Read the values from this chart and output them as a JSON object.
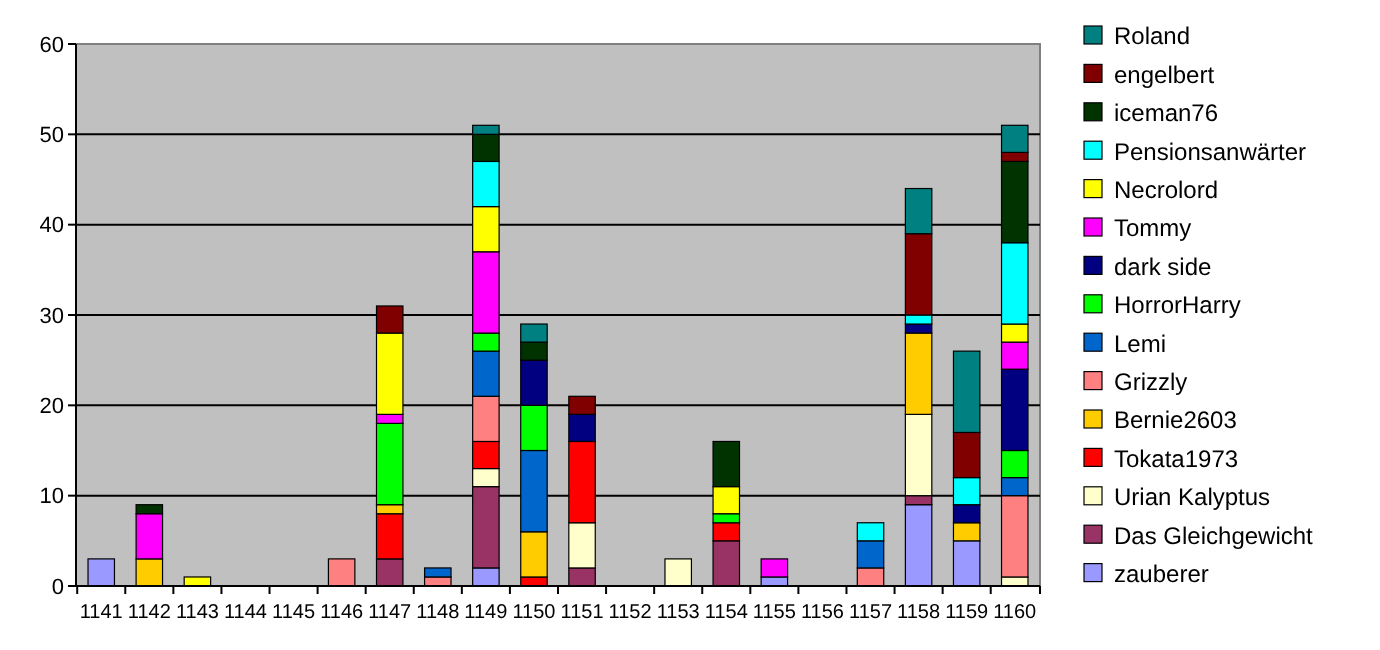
{
  "chart_data": {
    "type": "bar",
    "stacked": true,
    "categories": [
      "1141",
      "1142",
      "1143",
      "1144",
      "1145",
      "1146",
      "1147",
      "1148",
      "1149",
      "1150",
      "1151",
      "1152",
      "1153",
      "1154",
      "1155",
      "1156",
      "1157",
      "1158",
      "1159",
      "1160"
    ],
    "series": [
      {
        "name": "zauberer",
        "color": "#9999ff",
        "values": [
          3,
          null,
          null,
          null,
          null,
          null,
          null,
          null,
          2,
          null,
          null,
          null,
          null,
          null,
          1,
          null,
          null,
          9,
          5,
          null
        ]
      },
      {
        "name": "Das Gleichgewicht",
        "color": "#993366",
        "values": [
          null,
          null,
          null,
          null,
          null,
          null,
          3,
          null,
          9,
          null,
          2,
          null,
          null,
          5,
          null,
          null,
          null,
          1,
          null,
          null
        ]
      },
      {
        "name": "Urian Kalyptus",
        "color": "#ffffcc",
        "values": [
          null,
          null,
          null,
          null,
          null,
          null,
          null,
          null,
          2,
          null,
          5,
          null,
          3,
          null,
          null,
          null,
          null,
          9,
          null,
          1
        ]
      },
      {
        "name": "Tokata1973",
        "color": "#ff0000",
        "values": [
          null,
          null,
          null,
          null,
          null,
          null,
          5,
          null,
          3,
          1,
          9,
          null,
          null,
          2,
          null,
          null,
          null,
          null,
          null,
          null
        ]
      },
      {
        "name": "Bernie2603",
        "color": "#ffcc00",
        "values": [
          null,
          3,
          null,
          null,
          null,
          null,
          1,
          null,
          null,
          5,
          null,
          null,
          null,
          null,
          null,
          null,
          null,
          9,
          2,
          null
        ]
      },
      {
        "name": "Grizzly",
        "color": "#ff8080",
        "values": [
          null,
          null,
          null,
          null,
          null,
          3,
          null,
          1,
          5,
          null,
          null,
          null,
          null,
          null,
          null,
          null,
          2,
          null,
          null,
          9
        ]
      },
      {
        "name": "Lemi",
        "color": "#0066cc",
        "values": [
          null,
          null,
          null,
          null,
          null,
          null,
          null,
          1,
          5,
          9,
          null,
          null,
          null,
          null,
          null,
          null,
          3,
          null,
          null,
          2
        ]
      },
      {
        "name": "HorrorHarry",
        "color": "#00ff00",
        "values": [
          null,
          null,
          null,
          null,
          null,
          null,
          9,
          null,
          2,
          5,
          null,
          null,
          null,
          1,
          null,
          null,
          null,
          null,
          null,
          3
        ]
      },
      {
        "name": "dark side",
        "color": "#000080",
        "values": [
          null,
          null,
          null,
          null,
          null,
          null,
          null,
          null,
          null,
          5,
          3,
          null,
          null,
          null,
          null,
          null,
          null,
          1,
          2,
          9
        ]
      },
      {
        "name": "Tommy",
        "color": "#ff00ff",
        "values": [
          null,
          5,
          null,
          null,
          null,
          null,
          1,
          null,
          9,
          null,
          null,
          null,
          null,
          null,
          2,
          null,
          null,
          null,
          null,
          3
        ]
      },
      {
        "name": "Necrolord",
        "color": "#ffff00",
        "values": [
          null,
          null,
          1,
          null,
          null,
          null,
          9,
          null,
          5,
          null,
          null,
          null,
          null,
          3,
          null,
          null,
          null,
          null,
          null,
          2
        ]
      },
      {
        "name": "Pensionsanwärter",
        "color": "#00ffff",
        "values": [
          null,
          null,
          null,
          null,
          null,
          null,
          null,
          null,
          5,
          null,
          null,
          null,
          null,
          null,
          null,
          null,
          2,
          1,
          3,
          9
        ]
      },
      {
        "name": "iceman76",
        "color": "#003300",
        "values": [
          null,
          1,
          null,
          null,
          null,
          null,
          null,
          null,
          3,
          2,
          null,
          null,
          null,
          5,
          null,
          null,
          null,
          null,
          null,
          9
        ]
      },
      {
        "name": "engelbert",
        "color": "#800000",
        "values": [
          null,
          null,
          null,
          null,
          null,
          null,
          3,
          null,
          null,
          null,
          2,
          null,
          null,
          null,
          null,
          null,
          null,
          9,
          5,
          1
        ]
      },
      {
        "name": "Roland",
        "color": "#008080",
        "values": [
          null,
          null,
          null,
          null,
          null,
          null,
          null,
          null,
          1,
          2,
          null,
          null,
          null,
          null,
          null,
          null,
          null,
          5,
          9,
          3
        ]
      }
    ],
    "ylim": [
      0,
      60
    ],
    "yticks": [
      0,
      10,
      20,
      30,
      40,
      50,
      60
    ],
    "grid": "y",
    "legend": "right"
  }
}
